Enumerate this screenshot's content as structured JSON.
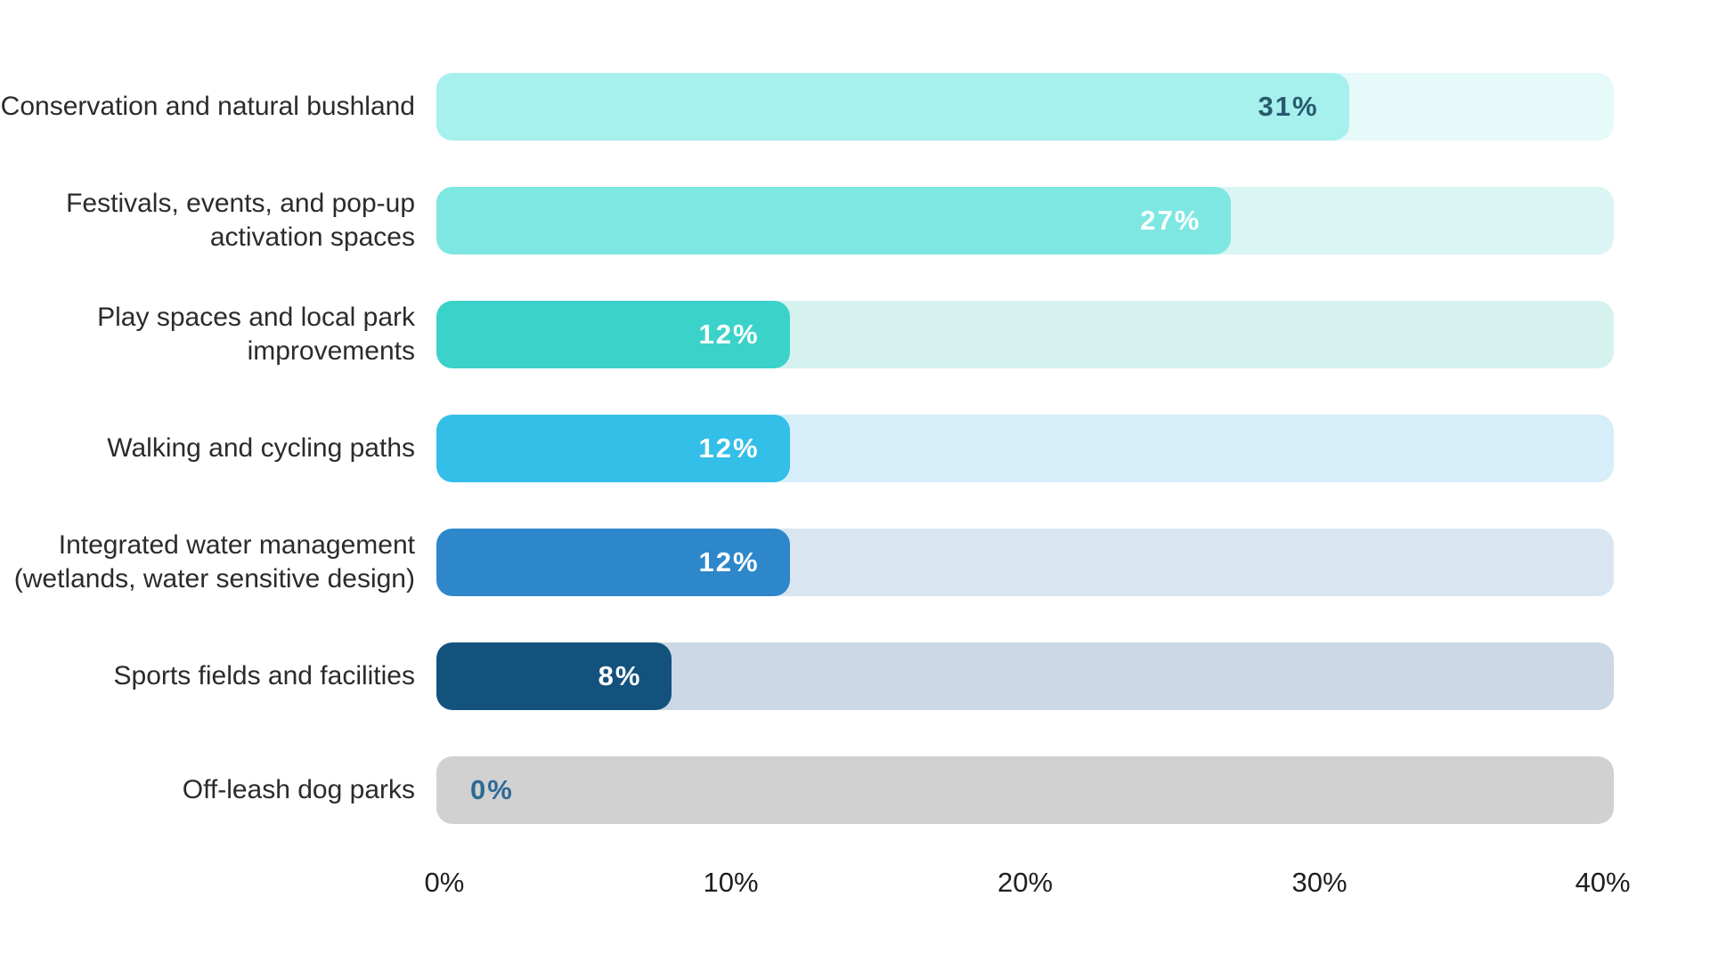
{
  "page": {
    "background": "#ffffff",
    "text_color": "#2b2b2b"
  },
  "chart_data": {
    "type": "bar",
    "orientation": "horizontal",
    "title": "",
    "xlabel": "",
    "ylabel": "",
    "xlim": [
      0,
      40
    ],
    "x_ticks": [
      "0%",
      "10%",
      "20%",
      "30%",
      "40%"
    ],
    "grid": false,
    "legend": "none",
    "categories": [
      "Conservation and natural bushland",
      "Festivals, events, and pop-up activation spaces",
      "Play spaces and local park improvements",
      "Walking and cycling paths",
      "Integrated water management (wetlands, water sensitive design)",
      "Sports fields and facilities",
      "Off-leash dog parks"
    ],
    "values": [
      31,
      27,
      12,
      12,
      12,
      8,
      0
    ],
    "value_labels": [
      "31%",
      "27%",
      "12%",
      "12%",
      "12%",
      "8%",
      "0%"
    ],
    "bar_colors": [
      "#a6f0ee",
      "#7ee7e2",
      "#3bd2ca",
      "#33bfe7",
      "#2d87ca",
      "#14527e",
      "#d1d1d2"
    ],
    "track_colors": [
      "#e6fafa",
      "#daf5f3",
      "#d5f2ef",
      "#d5eef9",
      "#d9e6f2",
      "#ccd8e5",
      "#d1d1d2"
    ],
    "value_text_colors": [
      "#2a5a6e",
      "#ffffff",
      "#ffffff",
      "#ffffff",
      "#ffffff",
      "#ffffff",
      "#2d6a93"
    ]
  }
}
